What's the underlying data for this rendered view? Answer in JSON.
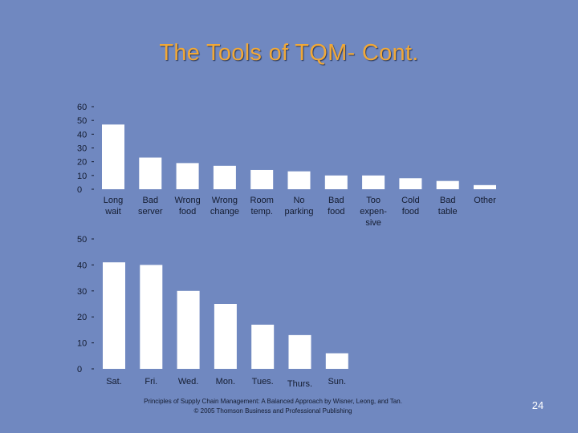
{
  "title": "The Tools of TQM- Cont.",
  "footer": {
    "line1": "Principles of Supply Chain Management: A Balanced Approach by Wisner, Leong, and Tan.",
    "line2": "© 2005 Thomson Business and Professional Publishing"
  },
  "page_number": "24",
  "colors": {
    "background": "#7088c0",
    "title": "#f0a838",
    "bar": "#ffffff",
    "text": "#141c30"
  },
  "chart_data": [
    {
      "type": "bar",
      "title": "",
      "xlabel": "",
      "ylabel": "",
      "ylim": [
        0,
        60
      ],
      "yticks": [
        "0",
        "10",
        "20",
        "30",
        "40",
        "50",
        "60"
      ],
      "categories": [
        [
          "Long",
          "wait"
        ],
        [
          "Bad",
          "server"
        ],
        [
          "Wrong",
          "food"
        ],
        [
          "Wrong",
          "change"
        ],
        [
          "Room",
          "temp."
        ],
        [
          "No",
          "parking"
        ],
        [
          "Bad",
          "food"
        ],
        [
          "Too",
          "expen-",
          "sive"
        ],
        [
          "Cold",
          "food"
        ],
        [
          "Bad",
          "table"
        ],
        [
          "Other"
        ]
      ],
      "values": [
        47,
        23,
        19,
        17,
        14,
        13,
        10,
        10,
        8,
        6,
        3
      ],
      "grid": false,
      "legend": "none"
    },
    {
      "type": "bar",
      "title": "",
      "xlabel": "",
      "ylabel": "",
      "ylim": [
        0,
        50
      ],
      "yticks": [
        "0",
        "10",
        "20",
        "30",
        "40",
        "50"
      ],
      "categories": [
        "Sat.",
        "Fri.",
        "Wed.",
        "Mon.",
        "Tues.",
        "Thurs.",
        "Sun."
      ],
      "values": [
        41,
        40,
        30,
        25,
        17,
        13,
        6
      ],
      "grid": false,
      "legend": "none"
    }
  ]
}
